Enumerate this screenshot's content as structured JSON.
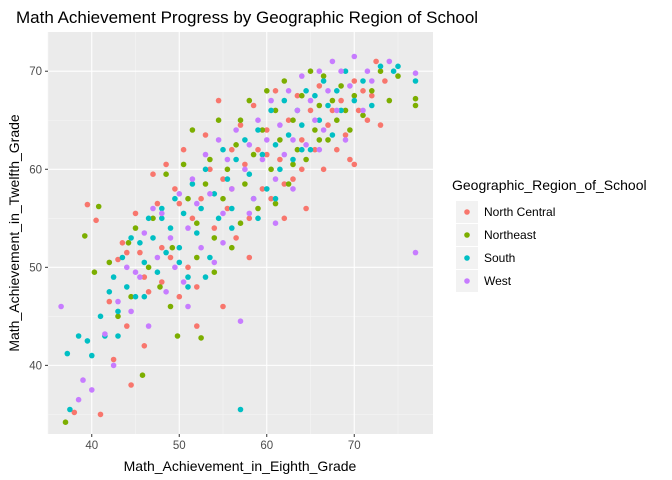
{
  "chart_data": {
    "type": "scatter",
    "title": "Math Achievement Progress by Geographic Region of School",
    "xlabel": "Math_Achievement_in_Eighth_Grade",
    "ylabel": "Math_Achievement_in_Twelfth_Grade",
    "xlim": [
      35,
      79
    ],
    "ylim": [
      33,
      74
    ],
    "xticks": [
      "40",
      "50",
      "60",
      "70"
    ],
    "xtick_values": [
      40,
      50,
      60,
      70
    ],
    "yticks": [
      "40",
      "50",
      "60",
      "70"
    ],
    "ytick_values": [
      40,
      50,
      60,
      70
    ],
    "grid": true,
    "legend": {
      "title": "Geographic_Region_of_School",
      "position": "right"
    },
    "series": [
      {
        "name": "North Central",
        "color": "#F8766D",
        "points": [
          [
            38,
            35.2
          ],
          [
            39.5,
            56.4
          ],
          [
            40.5,
            54.8
          ],
          [
            41,
            35
          ],
          [
            42,
            46.5
          ],
          [
            42.5,
            40.6
          ],
          [
            43,
            50.8
          ],
          [
            43.5,
            52.5
          ],
          [
            44,
            44
          ],
          [
            44.5,
            38
          ],
          [
            45,
            55.5
          ],
          [
            45.5,
            51.5
          ],
          [
            46,
            49
          ],
          [
            46.5,
            47.5
          ],
          [
            47,
            59.5
          ],
          [
            47.5,
            56.5
          ],
          [
            48,
            52
          ],
          [
            48.5,
            60.5
          ],
          [
            49,
            51
          ],
          [
            49.5,
            58
          ],
          [
            50,
            56.5
          ],
          [
            50.5,
            62
          ],
          [
            51,
            50
          ],
          [
            51.5,
            55
          ],
          [
            52,
            48
          ],
          [
            52.5,
            57
          ],
          [
            53,
            63.5
          ],
          [
            53.5,
            60
          ],
          [
            54,
            54
          ],
          [
            54.5,
            67
          ],
          [
            55,
            59
          ],
          [
            55.5,
            56
          ],
          [
            56,
            62
          ],
          [
            56.5,
            53
          ],
          [
            57,
            64.5
          ],
          [
            57.5,
            60.5
          ],
          [
            58,
            55
          ],
          [
            58.5,
            66.5
          ],
          [
            59,
            62
          ],
          [
            59.5,
            58
          ],
          [
            60,
            64
          ],
          [
            60.5,
            57
          ],
          [
            61,
            68
          ],
          [
            61.5,
            61
          ],
          [
            62,
            55
          ],
          [
            62.5,
            65
          ],
          [
            63,
            59
          ],
          [
            63.5,
            67.5
          ],
          [
            64,
            63
          ],
          [
            64.5,
            56
          ],
          [
            65,
            66
          ],
          [
            65.5,
            62
          ],
          [
            66,
            68.5
          ],
          [
            66.5,
            60
          ],
          [
            67,
            64.5
          ],
          [
            67.5,
            66
          ],
          [
            68,
            62
          ],
          [
            68.5,
            67
          ],
          [
            69,
            63.5
          ],
          [
            69.5,
            61
          ],
          [
            70,
            69
          ],
          [
            70.5,
            66
          ],
          [
            71,
            68
          ],
          [
            71.5,
            65
          ],
          [
            72,
            67.5
          ],
          [
            72.5,
            71
          ],
          [
            73,
            64.5
          ],
          [
            73.5,
            69
          ],
          [
            52,
            44
          ],
          [
            55,
            46
          ],
          [
            58,
            51
          ],
          [
            46,
            42
          ],
          [
            50,
            47
          ],
          [
            62,
            58.5
          ],
          [
            64,
            60
          ],
          [
            70,
            60.5
          ],
          [
            44,
            51.5
          ],
          [
            48,
            48.5
          ],
          [
            56,
            58
          ],
          [
            60,
            61.5
          ]
        ]
      },
      {
        "name": "Northeast",
        "color": "#7CAE00",
        "points": [
          [
            37,
            34.2
          ],
          [
            39.2,
            53.2
          ],
          [
            40.3,
            49.5
          ],
          [
            40.8,
            56.2
          ],
          [
            42,
            50.5
          ],
          [
            43,
            45
          ],
          [
            44.2,
            52.5
          ],
          [
            45,
            54
          ],
          [
            45.8,
            39
          ],
          [
            46.5,
            50
          ],
          [
            47,
            55
          ],
          [
            47.8,
            48
          ],
          [
            48.5,
            59.5
          ],
          [
            49.2,
            52
          ],
          [
            49.8,
            43
          ],
          [
            50.5,
            60.5
          ],
          [
            51,
            57
          ],
          [
            51.5,
            64
          ],
          [
            52,
            54.5
          ],
          [
            52.5,
            42.8
          ],
          [
            53,
            58.5
          ],
          [
            53.5,
            61
          ],
          [
            54,
            53
          ],
          [
            54.5,
            65
          ],
          [
            55,
            57
          ],
          [
            55.5,
            60
          ],
          [
            56,
            52
          ],
          [
            56.5,
            62.5
          ],
          [
            57,
            65
          ],
          [
            57.5,
            58.5
          ],
          [
            58,
            67
          ],
          [
            58.5,
            61.5
          ],
          [
            59,
            56
          ],
          [
            59.5,
            64
          ],
          [
            60,
            68
          ],
          [
            60.5,
            60
          ],
          [
            61,
            66
          ],
          [
            61.5,
            63
          ],
          [
            62,
            69
          ],
          [
            62.5,
            58.5
          ],
          [
            63,
            65
          ],
          [
            63.5,
            62
          ],
          [
            64,
            67.5
          ],
          [
            64.5,
            61
          ],
          [
            65,
            70
          ],
          [
            65.5,
            64
          ],
          [
            66,
            66.5
          ],
          [
            66.5,
            69.5
          ],
          [
            67,
            63
          ],
          [
            67.5,
            67
          ],
          [
            68,
            65
          ],
          [
            68.5,
            68.5
          ],
          [
            69,
            66
          ],
          [
            69.5,
            64
          ],
          [
            70,
            67.5
          ],
          [
            71,
            65.5
          ],
          [
            72,
            68
          ],
          [
            73,
            70
          ],
          [
            74,
            67
          ],
          [
            75,
            69.5
          ],
          [
            77,
            66.5
          ],
          [
            77,
            67.2
          ],
          [
            49,
            46
          ],
          [
            54,
            49.5
          ],
          [
            61,
            56.5
          ],
          [
            66,
            63
          ],
          [
            44.5,
            47
          ],
          [
            52,
            51
          ],
          [
            57,
            54.5
          ],
          [
            63,
            60.5
          ]
        ]
      },
      {
        "name": "South",
        "color": "#00BFC4",
        "points": [
          [
            37.2,
            41.2
          ],
          [
            37.5,
            35.5
          ],
          [
            38.5,
            43
          ],
          [
            39.5,
            42.5
          ],
          [
            40,
            41
          ],
          [
            41,
            45
          ],
          [
            41.5,
            43
          ],
          [
            42,
            47.5
          ],
          [
            42.5,
            49
          ],
          [
            43,
            45.5
          ],
          [
            43.5,
            51
          ],
          [
            44,
            48
          ],
          [
            44.5,
            53
          ],
          [
            45,
            47
          ],
          [
            45.5,
            52.5
          ],
          [
            46,
            50.5
          ],
          [
            46.5,
            55
          ],
          [
            47,
            53
          ],
          [
            47.5,
            49.5
          ],
          [
            48,
            56
          ],
          [
            48.5,
            51.5
          ],
          [
            49,
            54
          ],
          [
            49.5,
            57
          ],
          [
            50,
            52
          ],
          [
            50.5,
            55.5
          ],
          [
            51,
            49
          ],
          [
            51.5,
            58.5
          ],
          [
            52,
            53.5
          ],
          [
            52.5,
            56
          ],
          [
            53,
            60
          ],
          [
            53.5,
            51
          ],
          [
            54,
            57.5
          ],
          [
            54.5,
            55
          ],
          [
            55,
            62
          ],
          [
            55.5,
            59
          ],
          [
            56,
            54
          ],
          [
            56.5,
            61
          ],
          [
            57,
            35.5
          ],
          [
            57.5,
            63
          ],
          [
            58,
            59.5
          ],
          [
            58.5,
            57
          ],
          [
            59,
            64
          ],
          [
            59.5,
            61.5
          ],
          [
            60,
            58
          ],
          [
            60.5,
            66
          ],
          [
            61,
            62.5
          ],
          [
            61.5,
            60
          ],
          [
            62,
            67
          ],
          [
            62.5,
            63.5
          ],
          [
            63,
            61
          ],
          [
            63.5,
            66
          ],
          [
            64,
            64.5
          ],
          [
            64.5,
            68
          ],
          [
            65,
            62
          ],
          [
            65.5,
            67.5
          ],
          [
            66,
            65
          ],
          [
            66.5,
            69
          ],
          [
            67,
            66.5
          ],
          [
            67.5,
            63.5
          ],
          [
            68,
            68
          ],
          [
            68.5,
            66
          ],
          [
            69,
            70
          ],
          [
            70,
            67
          ],
          [
            71,
            69
          ],
          [
            72,
            66.5
          ],
          [
            73,
            70.5
          ],
          [
            74.5,
            70
          ],
          [
            75,
            70.5
          ],
          [
            77,
            69
          ],
          [
            53,
            49
          ],
          [
            51,
            48
          ],
          [
            46,
            47
          ],
          [
            56,
            56
          ],
          [
            59,
            55
          ],
          [
            50,
            50.5
          ],
          [
            43,
            43
          ],
          [
            61,
            57
          ],
          [
            64,
            62
          ],
          [
            48,
            55
          ]
        ]
      },
      {
        "name": "West",
        "color": "#C77CFF",
        "points": [
          [
            36.5,
            46
          ],
          [
            38.5,
            36.5
          ],
          [
            39,
            38.5
          ],
          [
            40,
            37.5
          ],
          [
            41.5,
            43.2
          ],
          [
            42.5,
            40
          ],
          [
            43,
            46.5
          ],
          [
            44,
            50
          ],
          [
            44.5,
            45.5
          ],
          [
            45.5,
            49
          ],
          [
            46,
            53.5
          ],
          [
            46.5,
            44
          ],
          [
            47,
            56
          ],
          [
            47.5,
            51
          ],
          [
            48,
            55.5
          ],
          [
            48.5,
            47.5
          ],
          [
            49,
            53
          ],
          [
            49.5,
            50
          ],
          [
            50,
            57.5
          ],
          [
            50.5,
            48.5
          ],
          [
            51,
            54
          ],
          [
            51.5,
            59
          ],
          [
            52,
            56.5
          ],
          [
            52.5,
            52
          ],
          [
            53,
            61.5
          ],
          [
            53.5,
            57.5
          ],
          [
            54,
            50.5
          ],
          [
            54.5,
            63
          ],
          [
            55,
            55.5
          ],
          [
            55.5,
            61
          ],
          [
            56,
            58
          ],
          [
            56.5,
            64
          ],
          [
            57,
            44.5
          ],
          [
            57.5,
            60
          ],
          [
            58,
            62.5
          ],
          [
            58.5,
            57
          ],
          [
            59,
            65
          ],
          [
            59.5,
            61
          ],
          [
            60,
            63
          ],
          [
            60.5,
            67
          ],
          [
            61,
            59
          ],
          [
            61.5,
            64.5
          ],
          [
            62,
            61.5
          ],
          [
            62.5,
            68
          ],
          [
            63,
            63
          ],
          [
            63.5,
            66
          ],
          [
            64,
            69.5
          ],
          [
            64.5,
            62.5
          ],
          [
            65,
            67
          ],
          [
            65.5,
            65
          ],
          [
            66,
            70
          ],
          [
            66.5,
            64
          ],
          [
            67,
            68
          ],
          [
            67.5,
            71
          ],
          [
            68,
            66
          ],
          [
            68.5,
            70
          ],
          [
            69,
            63
          ],
          [
            69.5,
            68.5
          ],
          [
            70,
            71.5
          ],
          [
            71,
            66
          ],
          [
            71.5,
            70
          ],
          [
            72,
            69
          ],
          [
            74,
            71
          ],
          [
            77,
            69.8
          ],
          [
            77,
            51.5
          ],
          [
            45,
            49.5
          ],
          [
            51,
            46
          ],
          [
            58,
            55.5
          ],
          [
            63,
            58
          ],
          [
            55,
            52.5
          ],
          [
            61,
            54.5
          ],
          [
            66,
            62
          ]
        ]
      }
    ]
  }
}
